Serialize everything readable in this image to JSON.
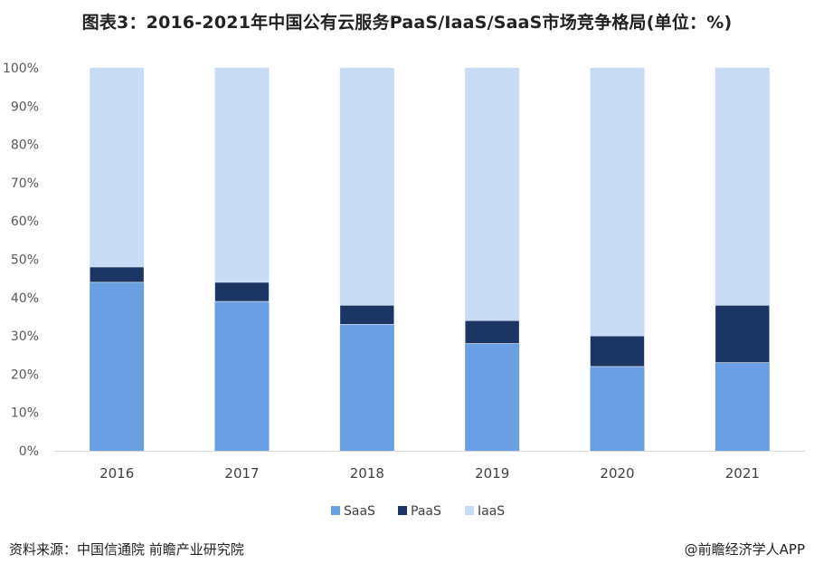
{
  "page": {
    "title": "图表3：2016-2021年中国公有云服务PaaS/IaaS/SaaS市场竞争格局(单位：%)",
    "source": "资料来源：中国信通院 前瞻产业研究院",
    "credit": "@前瞻经济学人APP"
  },
  "chart_data": {
    "type": "bar",
    "stacked": true,
    "categories": [
      "2016",
      "2017",
      "2018",
      "2019",
      "2020",
      "2021"
    ],
    "series": [
      {
        "name": "SaaS",
        "color": "#6a9fe3",
        "values": [
          44,
          39,
          33,
          28,
          22,
          23
        ]
      },
      {
        "name": "PaaS",
        "color": "#1c3664",
        "values": [
          4,
          5,
          5,
          6,
          8,
          15
        ]
      },
      {
        "name": "IaaS",
        "color": "#c9dcf6",
        "values": [
          52,
          56,
          62,
          66,
          70,
          62
        ]
      }
    ],
    "yticks": [
      "0%",
      "10%",
      "20%",
      "30%",
      "40%",
      "50%",
      "60%",
      "70%",
      "80%",
      "90%",
      "100%"
    ],
    "ylim": [
      0,
      100
    ],
    "grid": false,
    "legend_position": "bottom"
  }
}
